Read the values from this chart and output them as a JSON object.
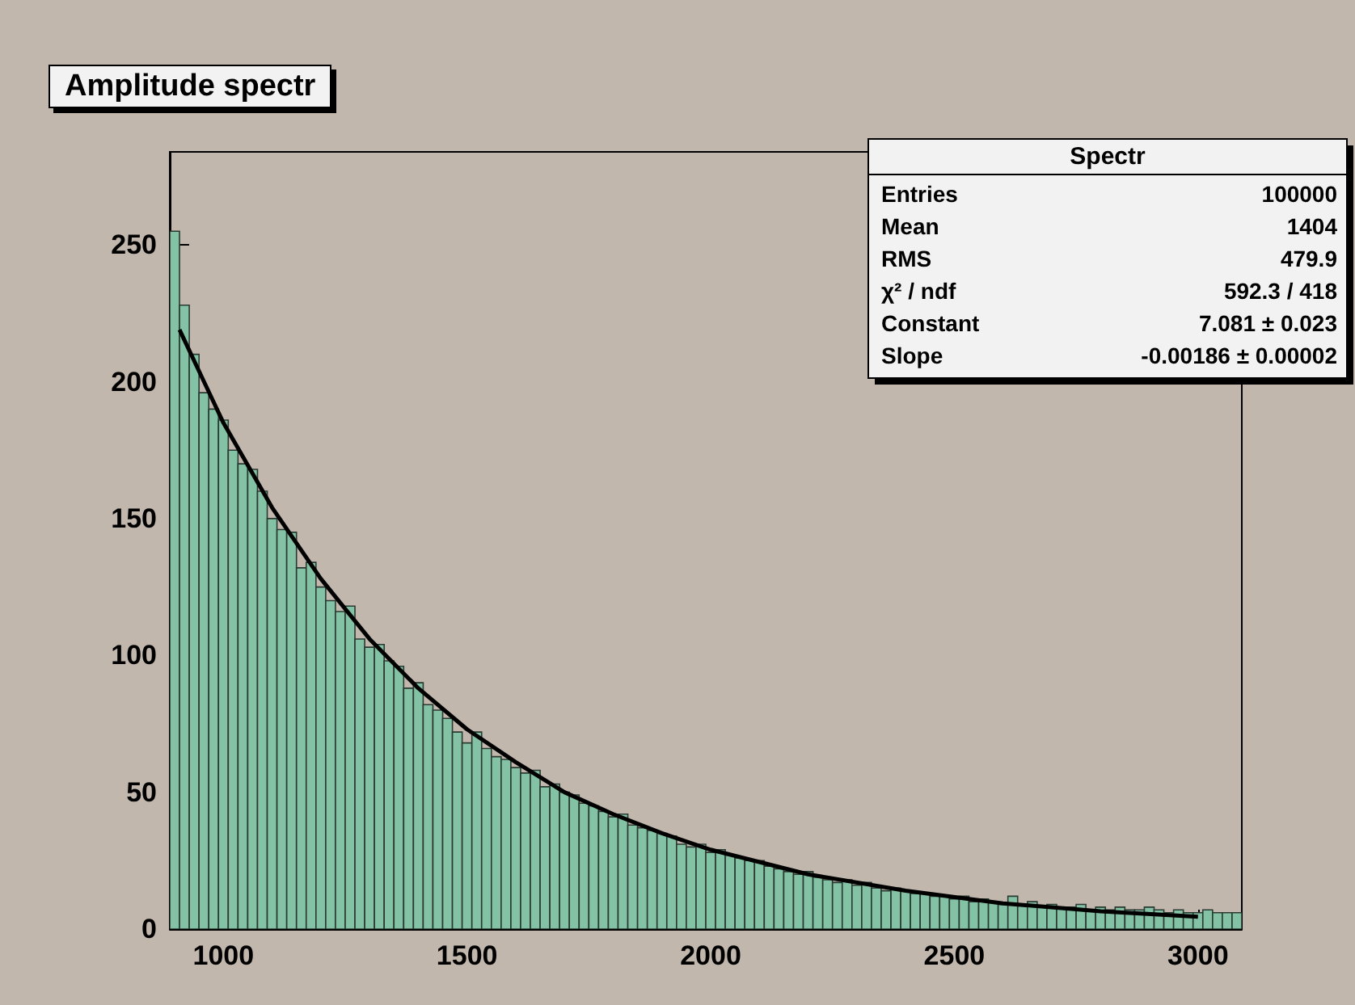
{
  "chart_data": {
    "type": "histogram",
    "title": "Amplitude spectr",
    "annotations": [
      "Spectr",
      "Entries",
      "100000",
      "Mean",
      "1404",
      "RMS",
      "479.9",
      "χ² / ndf",
      "592.3 / 418",
      "Constant",
      "7.081 ± 0.023",
      "Slope",
      "-0.00186 ± 0.00002"
    ],
    "bins": [
      890,
      910,
      930,
      950,
      970,
      990,
      1010,
      1030,
      1050,
      1070,
      1090,
      1110,
      1130,
      1150,
      1170,
      1190,
      1210,
      1230,
      1250,
      1270,
      1290,
      1310,
      1330,
      1350,
      1370,
      1390,
      1410,
      1430,
      1450,
      1470,
      1490,
      1510,
      1530,
      1550,
      1570,
      1590,
      1610,
      1630,
      1650,
      1670,
      1690,
      1710,
      1730,
      1750,
      1770,
      1790,
      1810,
      1830,
      1850,
      1870,
      1890,
      1910,
      1930,
      1950,
      1970,
      1990,
      2010,
      2030,
      2050,
      2070,
      2090,
      2110,
      2130,
      2150,
      2170,
      2190,
      2210,
      2230,
      2250,
      2270,
      2290,
      2310,
      2330,
      2350,
      2370,
      2390,
      2410,
      2430,
      2450,
      2470,
      2490,
      2510,
      2530,
      2550,
      2570,
      2590,
      2610,
      2630,
      2650,
      2670,
      2690,
      2710,
      2730,
      2750,
      2770,
      2790,
      2810,
      2830,
      2850,
      2870,
      2890,
      2910,
      2930,
      2950,
      2970,
      2990,
      3010,
      3030,
      3050,
      3070,
      3090
    ],
    "values": [
      255,
      228,
      210,
      196,
      190,
      186,
      175,
      170,
      168,
      160,
      150,
      146,
      145,
      132,
      134,
      125,
      120,
      116,
      118,
      106,
      103,
      104,
      98,
      96,
      88,
      90,
      82,
      80,
      77,
      72,
      68,
      72,
      66,
      63,
      62,
      59,
      57,
      58,
      52,
      53,
      50,
      49,
      46,
      45,
      43,
      41,
      42,
      38,
      37,
      36,
      35,
      34,
      31,
      30,
      31,
      28,
      29,
      27,
      26,
      25,
      25,
      23,
      22,
      21,
      20,
      21,
      19,
      18,
      17,
      18,
      16,
      17,
      15,
      14,
      15,
      14,
      13,
      13,
      12,
      12,
      11,
      12,
      10,
      11,
      10,
      9,
      12,
      9,
      10,
      8,
      9,
      8,
      8,
      9,
      7,
      8,
      7,
      8,
      7,
      7,
      8,
      7,
      6,
      7,
      6,
      6,
      7,
      6,
      6,
      6
    ],
    "color": "#83c2a4",
    "series": [
      {
        "type": "line",
        "color": "#000000",
        "x": [
          910,
          1000,
          1100,
          1200,
          1300,
          1400,
          1500,
          1600,
          1700,
          1800,
          1900,
          2000,
          2200,
          2400,
          2600,
          2800,
          3000
        ],
        "values": [
          219,
          185,
          154,
          128,
          106,
          88,
          73,
          61,
          50,
          42,
          35,
          29,
          20,
          14,
          9.4,
          6.5,
          4.5
        ]
      }
    ],
    "xlim": [
      890,
      3090
    ],
    "xticks": [
      1000,
      1500,
      2000,
      2500,
      3000
    ],
    "ylim": [
      0,
      284
    ],
    "yticks": [
      0,
      50,
      100,
      150,
      200,
      250
    ],
    "marker": "none",
    "line_style": "solid"
  }
}
